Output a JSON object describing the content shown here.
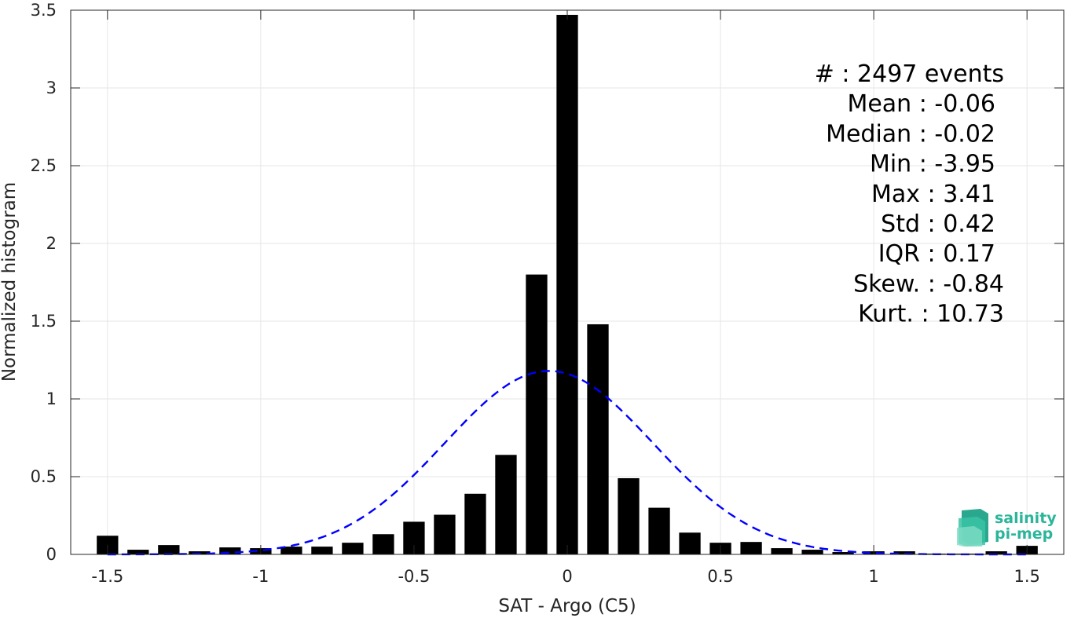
{
  "chart_data": {
    "type": "bar",
    "xlabel": "SAT - Argo (C5)",
    "ylabel": "Normalized histogram",
    "xlim": [
      -1.62,
      1.62
    ],
    "ylim": [
      0,
      3.5
    ],
    "grid": true,
    "x_ticks": [
      -1.5,
      -1,
      -0.5,
      0,
      0.5,
      1,
      1.5
    ],
    "x_tick_labels": [
      "-1.5",
      "-1",
      "-0.5",
      "0",
      "0.5",
      "1",
      "1.5"
    ],
    "y_ticks": [
      0,
      0.5,
      1,
      1.5,
      2,
      2.5,
      3,
      3.5
    ],
    "y_tick_labels": [
      "0",
      "0.5",
      "1",
      "1.5",
      "2",
      "2.5",
      "3",
      "3.5"
    ],
    "bar_width": 0.07,
    "bars": {
      "x": [
        -1.5,
        -1.4,
        -1.3,
        -1.2,
        -1.1,
        -1.0,
        -0.9,
        -0.8,
        -0.7,
        -0.6,
        -0.5,
        -0.4,
        -0.3,
        -0.2,
        -0.1,
        0.0,
        0.1,
        0.2,
        0.3,
        0.4,
        0.5,
        0.6,
        0.7,
        0.8,
        0.9,
        1.0,
        1.1,
        1.2,
        1.3,
        1.4,
        1.5
      ],
      "values": [
        0.12,
        0.03,
        0.06,
        0.02,
        0.045,
        0.04,
        0.05,
        0.05,
        0.075,
        0.13,
        0.21,
        0.255,
        0.39,
        0.64,
        1.8,
        3.47,
        1.48,
        0.49,
        0.3,
        0.14,
        0.075,
        0.08,
        0.04,
        0.03,
        0.015,
        0.02,
        0.02,
        0.005,
        0.005,
        0.02,
        0.055
      ],
      "color": "#000000"
    },
    "gaussian_fit": {
      "mean": -0.06,
      "std": 0.34,
      "peak": 1.18,
      "color": "#0000ff",
      "style": "dashed"
    },
    "stats_text": [
      "#  : 2497 events",
      "Mean : -0.06",
      "Median : -0.02",
      "Min : -3.95",
      "Max : 3.41",
      "Std : 0.42",
      "IQR : 0.17",
      "Skew. : -0.84",
      "Kurt. : 10.73"
    ]
  },
  "logo": {
    "line1": "salinity",
    "line2": "pi-mep",
    "color": "#2bb59a"
  }
}
